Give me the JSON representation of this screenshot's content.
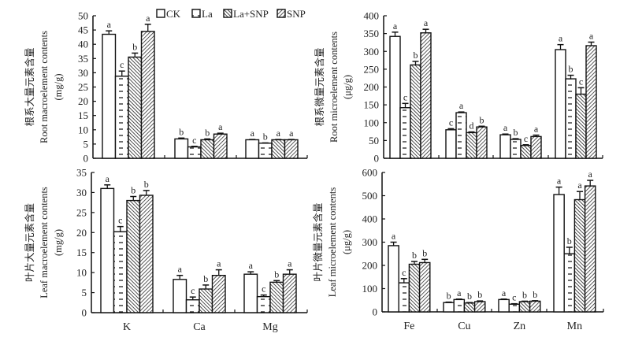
{
  "legend": {
    "entries": [
      {
        "key": "CK",
        "label": "CK",
        "pattern": "blank"
      },
      {
        "key": "La",
        "label": "La",
        "pattern": "dashes"
      },
      {
        "key": "La+SNP",
        "label": "La+SNP",
        "pattern": "backslash"
      },
      {
        "key": "SNP",
        "label": "SNP",
        "pattern": "slash"
      }
    ]
  },
  "colors": {
    "ink": "#111111",
    "background": "#ffffff"
  },
  "chart_data": [
    {
      "id": "root-macro",
      "type": "bar",
      "ylabel_lines": [
        "根系大量元素含量",
        "Root macroelement contents",
        "(mg/g)"
      ],
      "categories": [
        "K",
        "Ca",
        "Mg"
      ],
      "show_categories": false,
      "ylim": [
        0,
        50
      ],
      "yticks": [
        0,
        5,
        10,
        15,
        20,
        25,
        30,
        35,
        40,
        45,
        50
      ],
      "series": [
        {
          "name": "CK",
          "values": [
            43.5,
            6.8,
            6.5
          ],
          "errors": [
            1.2,
            0.3,
            0.1
          ],
          "letters": [
            "a",
            "b",
            "a"
          ]
        },
        {
          "name": "La",
          "values": [
            28.8,
            4.0,
            5.3
          ],
          "errors": [
            1.8,
            0.2,
            0.1
          ],
          "letters": [
            "c",
            "c",
            "b"
          ]
        },
        {
          "name": "La+SNP",
          "values": [
            35.5,
            6.5,
            6.5
          ],
          "errors": [
            1.4,
            0.3,
            0.1
          ],
          "letters": [
            "b",
            "b",
            "a"
          ]
        },
        {
          "name": "SNP",
          "values": [
            44.5,
            8.5,
            6.5
          ],
          "errors": [
            2.5,
            0.3,
            0.1
          ],
          "letters": [
            "a",
            "a",
            "a"
          ]
        }
      ]
    },
    {
      "id": "root-micro",
      "type": "bar",
      "ylabel_lines": [
        "根系微量元素含量",
        "Root microelement contents",
        "(μg/g)"
      ],
      "categories": [
        "Fe",
        "Cu",
        "Zn",
        "Mn"
      ],
      "show_categories": false,
      "ylim": [
        0,
        400
      ],
      "yticks": [
        0,
        50,
        100,
        150,
        200,
        250,
        300,
        350,
        400
      ],
      "series": [
        {
          "name": "CK",
          "values": [
            342,
            80,
            66,
            305
          ],
          "errors": [
            12,
            3,
            2,
            14
          ],
          "letters": [
            "a",
            "c",
            "a",
            "a"
          ]
        },
        {
          "name": "La",
          "values": [
            142,
            128,
            53,
            223
          ],
          "errors": [
            12,
            2,
            2,
            10
          ],
          "letters": [
            "c",
            "a",
            "b",
            "b"
          ]
        },
        {
          "name": "La+SNP",
          "values": [
            262,
            72,
            36,
            180
          ],
          "errors": [
            10,
            2,
            2,
            18
          ],
          "letters": [
            "b",
            "d",
            "c",
            "c"
          ]
        },
        {
          "name": "SNP",
          "values": [
            352,
            88,
            61,
            316
          ],
          "errors": [
            10,
            2,
            4,
            10
          ],
          "letters": [
            "a",
            "b",
            "a",
            "a"
          ]
        }
      ]
    },
    {
      "id": "leaf-macro",
      "type": "bar",
      "ylabel_lines": [
        "叶片大量元素含量",
        "Leaf macroelement contents",
        "(mg/g)"
      ],
      "categories": [
        "K",
        "Ca",
        "Mg"
      ],
      "show_categories": true,
      "ylim": [
        0,
        35
      ],
      "yticks": [
        0,
        5,
        10,
        15,
        20,
        25,
        30,
        35
      ],
      "series": [
        {
          "name": "CK",
          "values": [
            31.0,
            8.3,
            9.6
          ],
          "errors": [
            0.9,
            1.0,
            0.6
          ],
          "letters": [
            "a",
            "a",
            "a"
          ]
        },
        {
          "name": "La",
          "values": [
            20.2,
            3.2,
            4.0
          ],
          "errors": [
            1.3,
            0.7,
            0.4
          ],
          "letters": [
            "c",
            "c",
            "c"
          ]
        },
        {
          "name": "La+SNP",
          "values": [
            28.0,
            5.9,
            7.6
          ],
          "errors": [
            1.0,
            1.0,
            0.4
          ],
          "letters": [
            "b",
            "b",
            "b"
          ]
        },
        {
          "name": "SNP",
          "values": [
            29.3,
            9.3,
            9.6
          ],
          "errors": [
            1.2,
            1.4,
            1.1
          ],
          "letters": [
            "b",
            "a",
            "a"
          ]
        }
      ]
    },
    {
      "id": "leaf-micro",
      "type": "bar",
      "ylabel_lines": [
        "叶片微量元素含量",
        "Leaf microelement contents",
        "(μg/g)"
      ],
      "categories": [
        "Fe",
        "Cu",
        "Zn",
        "Mn"
      ],
      "show_categories": true,
      "ylim": [
        0,
        600
      ],
      "yticks": [
        0,
        100,
        200,
        300,
        400,
        500,
        600
      ],
      "series": [
        {
          "name": "CK",
          "values": [
            285,
            40,
            53,
            505
          ],
          "errors": [
            15,
            2,
            2,
            32
          ],
          "letters": [
            "a",
            "b",
            "a",
            "a"
          ]
        },
        {
          "name": "La",
          "values": [
            125,
            53,
            33,
            250
          ],
          "errors": [
            18,
            2,
            2,
            28
          ],
          "letters": [
            "c",
            "a",
            "c",
            "b"
          ]
        },
        {
          "name": "La+SNP",
          "values": [
            205,
            38,
            44,
            483
          ],
          "errors": [
            12,
            2,
            2,
            35
          ],
          "letters": [
            "b",
            "b",
            "b",
            "a"
          ]
        },
        {
          "name": "SNP",
          "values": [
            212,
            44,
            46,
            542
          ],
          "errors": [
            14,
            3,
            2,
            24
          ],
          "letters": [
            "b",
            "b",
            "b",
            "a"
          ]
        }
      ]
    }
  ]
}
